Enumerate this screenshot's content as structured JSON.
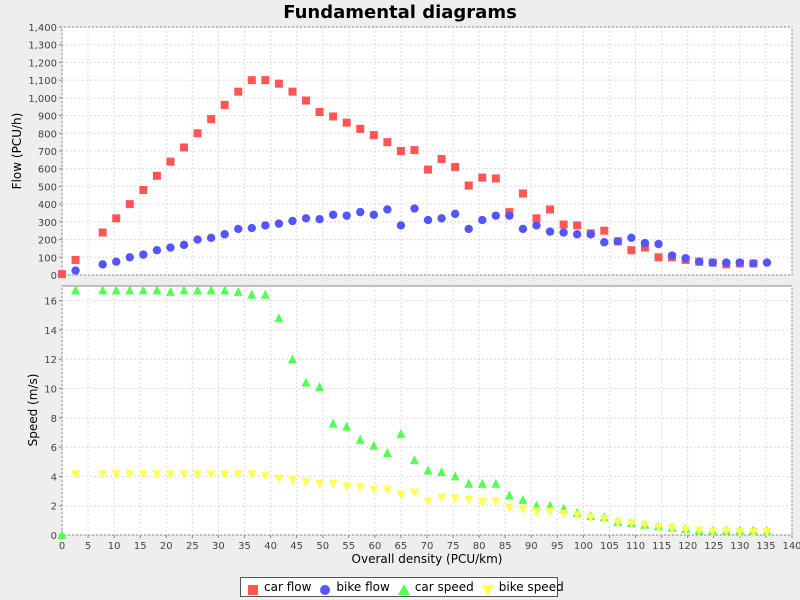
{
  "chart_data": [
    {
      "type": "scatter",
      "title": "Fundamental diagrams",
      "xlabel": "",
      "ylabel": "Flow (PCU/h)",
      "xlim": [
        0,
        140
      ],
      "ylim": [
        0,
        1400
      ],
      "grid": true,
      "y_ticks": [
        0,
        100,
        200,
        300,
        400,
        500,
        600,
        700,
        800,
        900,
        1000,
        1100,
        1200,
        1300,
        1400
      ],
      "y_tick_labels": [
        "0",
        "100",
        "200",
        "300",
        "400",
        "500",
        "600",
        "700",
        "800",
        "900",
        "1,000",
        "1,100",
        "1,200",
        "1,300",
        "1,400"
      ],
      "series": [
        {
          "name": "car flow",
          "marker": "square",
          "color": "#ff5555",
          "points": [
            [
              0,
              5
            ],
            [
              2.6,
              85
            ],
            [
              7.8,
              240
            ],
            [
              10.4,
              320
            ],
            [
              13.0,
              400
            ],
            [
              15.6,
              480
            ],
            [
              18.2,
              560
            ],
            [
              20.8,
              640
            ],
            [
              23.4,
              720
            ],
            [
              26.0,
              800
            ],
            [
              28.6,
              880
            ],
            [
              31.2,
              960
            ],
            [
              33.8,
              1035
            ],
            [
              36.4,
              1100
            ],
            [
              39.0,
              1100
            ],
            [
              41.6,
              1080
            ],
            [
              44.2,
              1035
            ],
            [
              46.8,
              985
            ],
            [
              49.4,
              920
            ],
            [
              52.0,
              895
            ],
            [
              54.6,
              860
            ],
            [
              57.2,
              825
            ],
            [
              59.8,
              790
            ],
            [
              62.4,
              750
            ],
            [
              65.0,
              700
            ],
            [
              67.6,
              705
            ],
            [
              70.2,
              595
            ],
            [
              72.8,
              655
            ],
            [
              75.4,
              610
            ],
            [
              78.0,
              505
            ],
            [
              80.6,
              550
            ],
            [
              83.2,
              545
            ],
            [
              85.8,
              355
            ],
            [
              88.4,
              460
            ],
            [
              91.0,
              320
            ],
            [
              93.6,
              370
            ],
            [
              96.2,
              285
            ],
            [
              98.8,
              280
            ],
            [
              101.4,
              235
            ],
            [
              104.0,
              250
            ],
            [
              106.6,
              190
            ],
            [
              109.2,
              140
            ],
            [
              111.8,
              155
            ],
            [
              114.4,
              100
            ],
            [
              117.0,
              100
            ],
            [
              119.6,
              85
            ],
            [
              122.2,
              75
            ],
            [
              124.8,
              70
            ],
            [
              127.4,
              60
            ],
            [
              130.0,
              65
            ],
            [
              132.6,
              65
            ]
          ]
        },
        {
          "name": "bike flow",
          "marker": "circle",
          "color": "#5555ff",
          "points": [
            [
              2.6,
              25
            ],
            [
              7.8,
              60
            ],
            [
              10.4,
              75
            ],
            [
              13.0,
              100
            ],
            [
              15.6,
              115
            ],
            [
              18.2,
              140
            ],
            [
              20.8,
              155
            ],
            [
              23.4,
              170
            ],
            [
              26.0,
              200
            ],
            [
              28.6,
              210
            ],
            [
              31.2,
              230
            ],
            [
              33.8,
              260
            ],
            [
              36.4,
              265
            ],
            [
              39.0,
              280
            ],
            [
              41.6,
              290
            ],
            [
              44.2,
              305
            ],
            [
              46.8,
              320
            ],
            [
              49.4,
              315
            ],
            [
              52.0,
              340
            ],
            [
              54.6,
              335
            ],
            [
              57.2,
              355
            ],
            [
              59.8,
              340
            ],
            [
              62.4,
              370
            ],
            [
              65.0,
              280
            ],
            [
              67.6,
              375
            ],
            [
              70.2,
              310
            ],
            [
              72.8,
              320
            ],
            [
              75.4,
              345
            ],
            [
              78.0,
              260
            ],
            [
              80.6,
              310
            ],
            [
              83.2,
              335
            ],
            [
              85.8,
              335
            ],
            [
              88.4,
              260
            ],
            [
              91.0,
              280
            ],
            [
              93.6,
              245
            ],
            [
              96.2,
              240
            ],
            [
              98.8,
              230
            ],
            [
              101.4,
              230
            ],
            [
              104.0,
              185
            ],
            [
              106.6,
              190
            ],
            [
              109.2,
              210
            ],
            [
              111.8,
              180
            ],
            [
              114.4,
              175
            ],
            [
              117.0,
              110
            ],
            [
              119.6,
              95
            ],
            [
              122.2,
              75
            ],
            [
              124.8,
              70
            ],
            [
              127.4,
              70
            ],
            [
              130.0,
              70
            ],
            [
              132.6,
              65
            ],
            [
              135.2,
              70
            ]
          ]
        }
      ]
    },
    {
      "type": "scatter",
      "xlabel": "Overall density (PCU/km)",
      "ylabel": "Speed (m/s)",
      "xlim": [
        0,
        140
      ],
      "ylim": [
        0,
        17
      ],
      "grid": true,
      "x_ticks": [
        0,
        5,
        10,
        15,
        20,
        25,
        30,
        35,
        40,
        45,
        50,
        55,
        60,
        65,
        70,
        75,
        80,
        85,
        90,
        95,
        100,
        105,
        110,
        115,
        120,
        125,
        130,
        135,
        140
      ],
      "y_ticks": [
        0,
        2,
        4,
        6,
        8,
        10,
        12,
        14,
        16
      ],
      "legend_position": "bottom",
      "series": [
        {
          "name": "car speed",
          "marker": "triangle",
          "color": "#55ff55",
          "points": [
            [
              2.6,
              16.7
            ],
            [
              7.8,
              16.7
            ],
            [
              10.4,
              16.7
            ],
            [
              13.0,
              16.7
            ],
            [
              15.6,
              16.7
            ],
            [
              18.2,
              16.7
            ],
            [
              20.8,
              16.6
            ],
            [
              23.4,
              16.7
            ],
            [
              26.0,
              16.7
            ],
            [
              28.6,
              16.7
            ],
            [
              31.2,
              16.7
            ],
            [
              33.8,
              16.6
            ],
            [
              36.4,
              16.4
            ],
            [
              39.0,
              16.4
            ],
            [
              41.6,
              14.8
            ],
            [
              44.2,
              12.0
            ],
            [
              46.8,
              10.4
            ],
            [
              49.4,
              10.1
            ],
            [
              52.0,
              7.6
            ],
            [
              54.6,
              7.4
            ],
            [
              57.2,
              6.5
            ],
            [
              59.8,
              6.1
            ],
            [
              62.4,
              5.6
            ],
            [
              65.0,
              6.9
            ],
            [
              67.6,
              5.1
            ],
            [
              70.2,
              4.4
            ],
            [
              72.8,
              4.3
            ],
            [
              75.4,
              4.0
            ],
            [
              78.0,
              3.5
            ],
            [
              80.6,
              3.5
            ],
            [
              83.2,
              3.5
            ],
            [
              85.8,
              2.7
            ],
            [
              88.4,
              2.4
            ],
            [
              91.0,
              2.0
            ],
            [
              93.6,
              2.0
            ],
            [
              96.2,
              1.8
            ],
            [
              98.8,
              1.5
            ],
            [
              101.4,
              1.3
            ],
            [
              104.0,
              1.2
            ],
            [
              106.6,
              0.9
            ],
            [
              109.2,
              0.8
            ],
            [
              111.8,
              0.7
            ],
            [
              114.4,
              0.6
            ],
            [
              117.0,
              0.5
            ],
            [
              119.6,
              0.4
            ],
            [
              122.2,
              0.3
            ],
            [
              124.8,
              0.3
            ],
            [
              127.4,
              0.3
            ],
            [
              130.0,
              0.3
            ],
            [
              132.6,
              0.3
            ],
            [
              135.2,
              0.25
            ],
            [
              0,
              0.0
            ]
          ]
        },
        {
          "name": "bike speed",
          "marker": "triangle-down",
          "color": "#ffff55",
          "points": [
            [
              2.6,
              4.15
            ],
            [
              7.8,
              4.15
            ],
            [
              10.4,
              4.15
            ],
            [
              13.0,
              4.15
            ],
            [
              15.6,
              4.15
            ],
            [
              18.2,
              4.15
            ],
            [
              20.8,
              4.15
            ],
            [
              23.4,
              4.15
            ],
            [
              26.0,
              4.15
            ],
            [
              28.6,
              4.15
            ],
            [
              31.2,
              4.15
            ],
            [
              33.8,
              4.15
            ],
            [
              36.4,
              4.15
            ],
            [
              39.0,
              4.05
            ],
            [
              41.6,
              3.85
            ],
            [
              44.2,
              3.75
            ],
            [
              46.8,
              3.6
            ],
            [
              49.4,
              3.5
            ],
            [
              52.0,
              3.5
            ],
            [
              54.6,
              3.3
            ],
            [
              57.2,
              3.25
            ],
            [
              59.8,
              3.1
            ],
            [
              62.4,
              3.1
            ],
            [
              65.0,
              2.75
            ],
            [
              67.6,
              2.9
            ],
            [
              70.2,
              2.3
            ],
            [
              72.8,
              2.55
            ],
            [
              75.4,
              2.5
            ],
            [
              78.0,
              2.4
            ],
            [
              80.6,
              2.25
            ],
            [
              83.2,
              2.3
            ],
            [
              85.8,
              1.85
            ],
            [
              88.4,
              1.75
            ],
            [
              91.0,
              1.6
            ],
            [
              93.6,
              1.6
            ],
            [
              96.2,
              1.45
            ],
            [
              98.8,
              1.35
            ],
            [
              101.4,
              1.2
            ],
            [
              104.0,
              1.1
            ],
            [
              106.6,
              0.85
            ],
            [
              109.2,
              0.8
            ],
            [
              111.8,
              0.7
            ],
            [
              114.4,
              0.55
            ],
            [
              117.0,
              0.45
            ],
            [
              119.6,
              0.35
            ],
            [
              122.2,
              0.3
            ],
            [
              124.8,
              0.25
            ],
            [
              127.4,
              0.25
            ],
            [
              130.0,
              0.2
            ],
            [
              132.6,
              0.2
            ],
            [
              135.2,
              0.2
            ]
          ]
        }
      ]
    }
  ],
  "legend": {
    "items": [
      {
        "label": "car flow",
        "marker": "square",
        "color": "#ff5555"
      },
      {
        "label": "bike flow",
        "marker": "circle",
        "color": "#5555ff"
      },
      {
        "label": "car speed",
        "marker": "triangle",
        "color": "#55ff55"
      },
      {
        "label": "bike speed",
        "marker": "triangle-down",
        "color": "#ffff55"
      }
    ]
  }
}
